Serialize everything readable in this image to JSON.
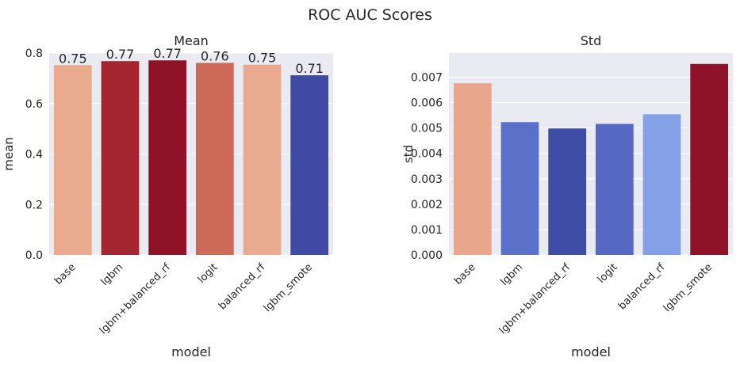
{
  "suptitle": "ROC AUC Scores",
  "chart_data": [
    {
      "type": "bar",
      "title": "Mean",
      "xlabel": "model",
      "ylabel": "mean",
      "categories": [
        "base",
        "lgbm",
        "lgbm+balanced_rf",
        "logit",
        "balanced_rf",
        "lgbm_smote"
      ],
      "values": [
        0.752,
        0.768,
        0.771,
        0.761,
        0.754,
        0.712
      ],
      "data_labels": [
        "0.75",
        "0.77",
        "0.77",
        "0.76",
        "0.75",
        "0.71"
      ],
      "colors": [
        "#eaaa8f",
        "#a4252f",
        "#8e1329",
        "#cc6a57",
        "#eaaa8f",
        "#3e4aa3"
      ],
      "ylim": [
        0,
        0.8
      ],
      "yticks": [
        0.0,
        0.2,
        0.4,
        0.6,
        0.8
      ],
      "ytick_labels": [
        "0.0",
        "0.2",
        "0.4",
        "0.6",
        "0.8"
      ],
      "grid": true,
      "style": "seaborn darkgrid"
    },
    {
      "type": "bar",
      "title": "Std",
      "xlabel": "model",
      "ylabel": "std",
      "categories": [
        "base",
        "lgbm",
        "lgbm+balanced_rf",
        "logit",
        "balanced_rf",
        "lgbm_smote"
      ],
      "values": [
        0.00676,
        0.00523,
        0.00498,
        0.00516,
        0.00554,
        0.00752
      ],
      "colors": [
        "#e8a68c",
        "#5b70c8",
        "#3f4ca6",
        "#5468c4",
        "#84a1e8",
        "#8e1329"
      ],
      "ylim": [
        0,
        0.00795
      ],
      "yticks": [
        0.0,
        0.001,
        0.002,
        0.003,
        0.004,
        0.005,
        0.006,
        0.007
      ],
      "ytick_labels": [
        "0.000",
        "0.001",
        "0.002",
        "0.003",
        "0.004",
        "0.005",
        "0.006",
        "0.007"
      ],
      "grid": true,
      "style": "seaborn darkgrid"
    }
  ]
}
